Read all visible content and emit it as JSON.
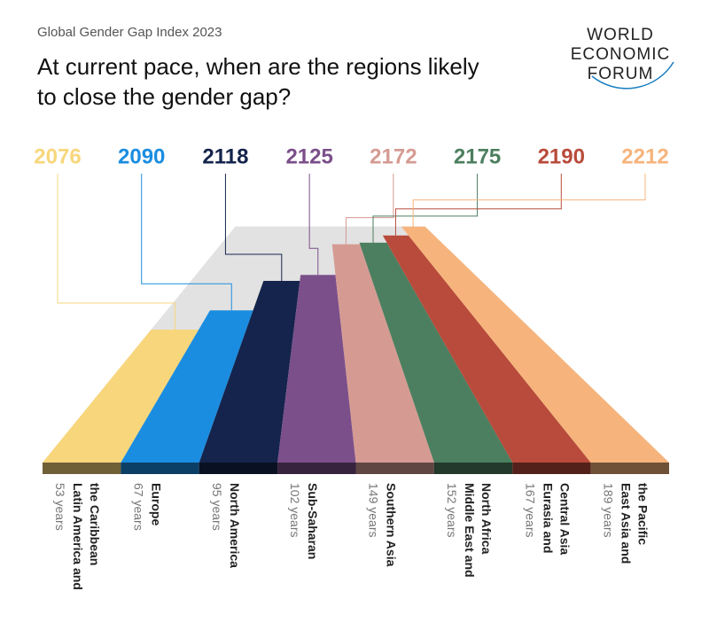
{
  "header": {
    "subtitle": "Global Gender Gap Index 2023",
    "title": "At current pace, when are the regions likely to close the gender gap?"
  },
  "logo": [
    "WORLD",
    "ECONOMIC",
    "FORUM"
  ],
  "chart_data": {
    "type": "perspective-bar",
    "categories": [
      "Latin America and\nthe Caribbean",
      "Europe",
      "North America",
      "Sub-Saharan",
      "Southern Asia",
      "Middle East and\nNorth Africa",
      "Eurasia and\nCentral Asia",
      "East Asia and\nthe Pacific"
    ],
    "values": [
      53,
      67,
      95,
      102,
      149,
      152,
      167,
      189
    ],
    "value_labels": [
      "53 years",
      "67 years",
      "95 years",
      "102 years",
      "149 years",
      "152 years",
      "167 years",
      "189 years"
    ],
    "close_year": [
      2076,
      2090,
      2118,
      2125,
      2172,
      2175,
      2190,
      2212
    ],
    "colors": [
      "#f8d67c",
      "#1b8de0",
      "#14244c",
      "#7b4f8a",
      "#d59b93",
      "#4c7f5f",
      "#b84b3b",
      "#f6b47c"
    ]
  }
}
